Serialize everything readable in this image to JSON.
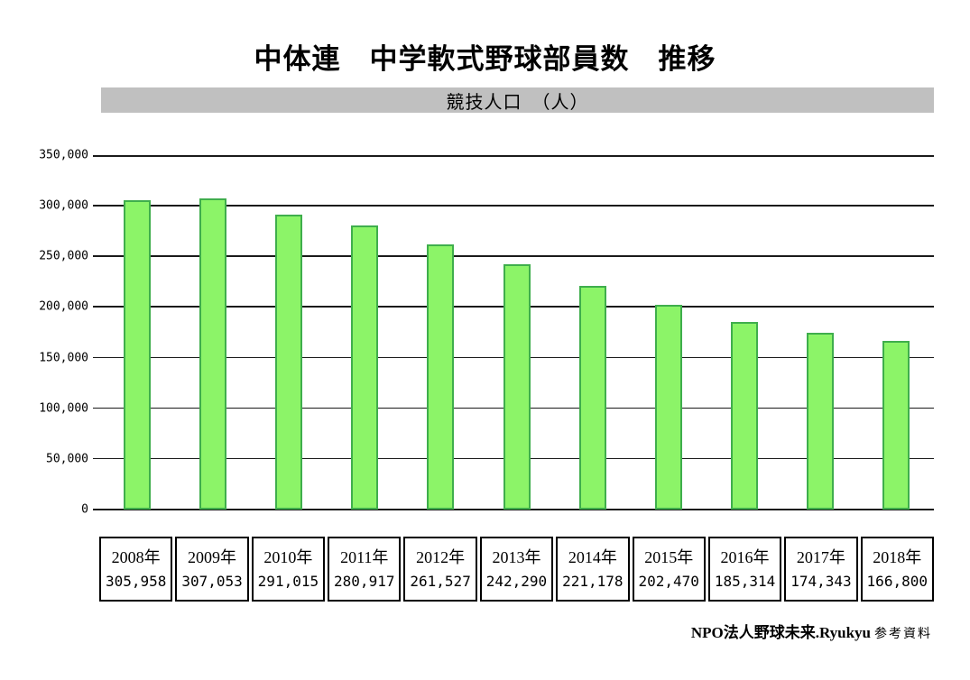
{
  "title": "中体連　中学軟式野球部員数　推移",
  "subtitle": "競技人口　（人）",
  "footer": {
    "source_name": "NPO法人野球未来.Ryukyu",
    "source_note": "参考資料"
  },
  "chart_data": {
    "type": "bar",
    "title": "中体連　中学軟式野球部員数　推移",
    "subtitle": "競技人口　（人）",
    "categories": [
      "2008年",
      "2009年",
      "2010年",
      "2011年",
      "2012年",
      "2013年",
      "2014年",
      "2015年",
      "2016年",
      "2017年",
      "2018年"
    ],
    "values": [
      305958,
      307053,
      291015,
      280917,
      261527,
      242290,
      221178,
      202470,
      185314,
      174343,
      166800
    ],
    "value_labels": [
      "305,958",
      "307,053",
      "291,015",
      "280,917",
      "261,527",
      "242,290",
      "221,178",
      "202,470",
      "185,314",
      "174,343",
      "166,800"
    ],
    "ylim": [
      0,
      350000
    ],
    "ytick_step": 50000,
    "ytick_labels": [
      "0",
      "50,000",
      "100,000",
      "150,000",
      "200,000",
      "250,000",
      "300,000",
      "350,000"
    ],
    "grid": "horizontal",
    "legend": "none",
    "colors": {
      "bar_fill": "#8cf468",
      "bar_border": "#3fae4c",
      "subtitle_band_bg": "#c0c0c0",
      "gridline": "#1a1a1a",
      "text": "#000000",
      "background": "#ffffff"
    }
  }
}
